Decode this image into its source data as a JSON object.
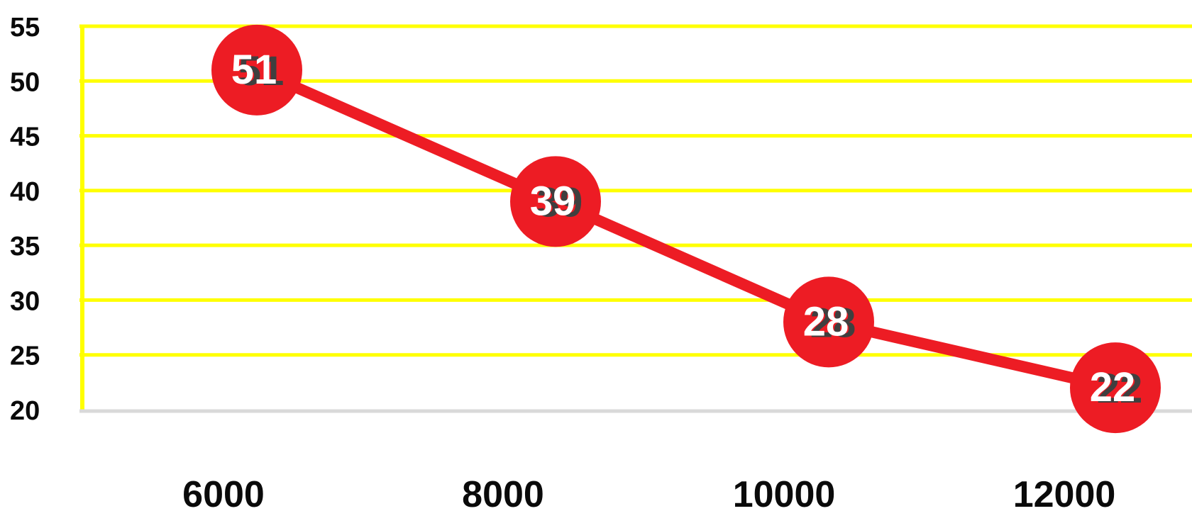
{
  "chart_data": {
    "type": "line",
    "categories": [
      "6000",
      "8000",
      "10000",
      "12000"
    ],
    "series": [
      {
        "values": [
          51,
          39,
          28,
          22
        ]
      }
    ],
    "ylim": [
      20,
      55
    ],
    "yticks": [
      20,
      25,
      30,
      35,
      40,
      45,
      50,
      55
    ],
    "title": "",
    "xlabel": "",
    "ylabel": "",
    "grid": true,
    "colors": {
      "line": "#ed1c24",
      "marker": "#ed1c24",
      "gridline": "#ffff00",
      "label_shadow": "#3f3f3f",
      "label_text": "#ffffff",
      "baseline": "#d9d9d9"
    }
  }
}
